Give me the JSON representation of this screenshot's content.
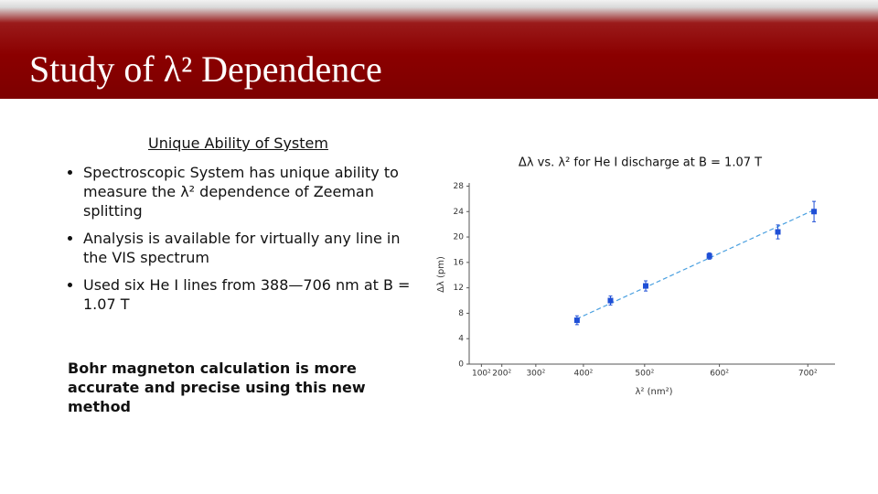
{
  "header": {
    "title": "Study of λ² Dependence"
  },
  "left_panel": {
    "heading": "Unique Ability of System",
    "bullets": [
      "Spectroscopic System has unique ability to measure the λ² dependence of Zeeman splitting",
      "Analysis is available for virtually any line in the VIS spectrum",
      "Used six He I lines from 388—706 nm at B = 1.07 T"
    ],
    "conclusion": "Bohr magneton calculation is more accurate and precise using this new method"
  },
  "chart_data": {
    "type": "scatter",
    "title": "Δλ vs. λ² for He I discharge at B = 1.07 T",
    "x_label": "λ² (nm²)",
    "y_label": "Δλ (pm)",
    "series": [
      {
        "color": "#1f4fd6",
        "x": [
          150544,
          199809,
          251602,
          345274,
          445957,
          499142
        ],
        "values": [
          6.9,
          10.0,
          12.3,
          17.0,
          20.8,
          24.0
        ],
        "errors": [
          0.7,
          0.7,
          0.8,
          0.5,
          1.1,
          1.6
        ]
      }
    ],
    "fit_line": {
      "color": "#4aa0e0",
      "x": [
        150000,
        500000
      ],
      "values": [
        7.1,
        24.3
      ]
    },
    "xlim": [
      -8000,
      530000
    ],
    "ylim": [
      0,
      28.5
    ],
    "xticks": [
      {
        "value": 10000,
        "label": "100²"
      },
      {
        "value": 40000,
        "label": "200²"
      },
      {
        "value": 90000,
        "label": "300²"
      },
      {
        "value": 160000,
        "label": "400²"
      },
      {
        "value": 250000,
        "label": "500²"
      },
      {
        "value": 360000,
        "label": "600²"
      },
      {
        "value": 490000,
        "label": "700²"
      }
    ],
    "yticks": [
      0,
      4,
      8,
      12,
      16,
      20,
      24,
      28
    ]
  }
}
